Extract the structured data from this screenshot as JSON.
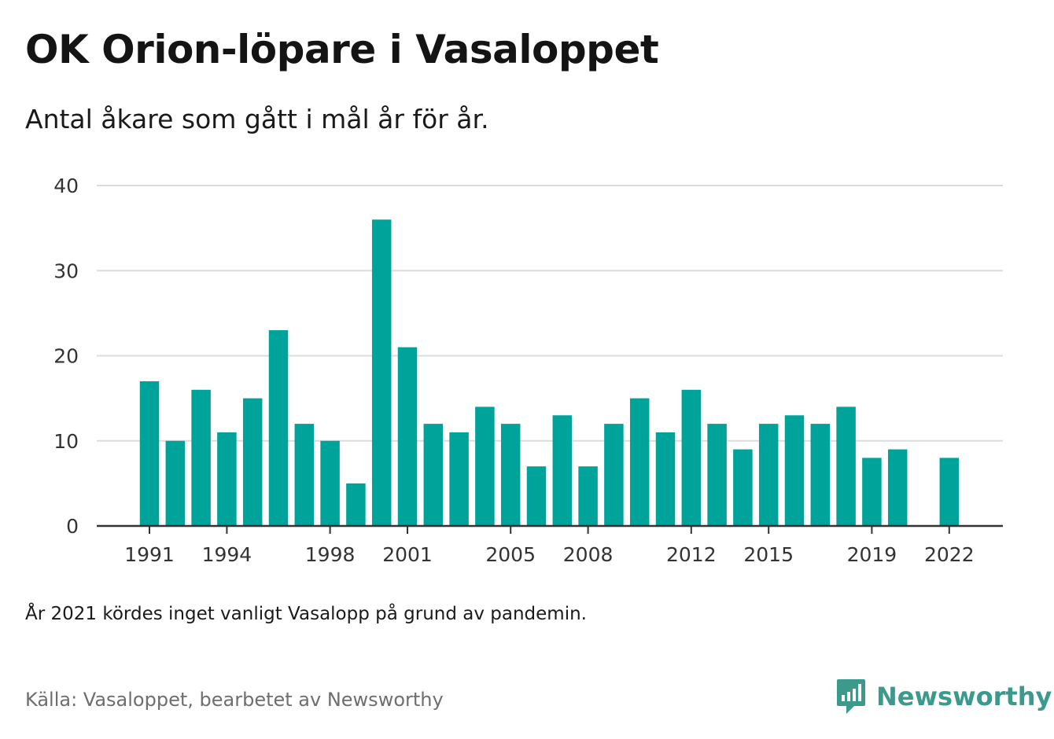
{
  "header": {
    "title": "OK Orion-löpare i Vasaloppet",
    "subtitle": "Antal åkare som gått i mål år för år."
  },
  "footnote": "År 2021 kördes inget vanligt Vasalopp på grund av pandemin.",
  "source": "Källa: Vasaloppet, bearbetet av Newsworthy",
  "brand": {
    "name": "Newsworthy",
    "icon": "newsworthy-logo-icon",
    "color": "#3c9a8c"
  },
  "chart_data": {
    "type": "bar",
    "categories": [
      "1991",
      "1992",
      "1993",
      "1994",
      "1995",
      "1996",
      "1997",
      "1998",
      "1999",
      "2000",
      "2001",
      "2002",
      "2003",
      "2004",
      "2005",
      "2006",
      "2007",
      "2008",
      "2009",
      "2010",
      "2011",
      "2012",
      "2013",
      "2014",
      "2015",
      "2016",
      "2017",
      "2018",
      "2019",
      "2020",
      "2021",
      "2022"
    ],
    "values": [
      17,
      10,
      16,
      11,
      15,
      23,
      12,
      10,
      5,
      36,
      21,
      12,
      11,
      14,
      12,
      7,
      13,
      7,
      12,
      15,
      11,
      16,
      12,
      9,
      12,
      13,
      12,
      14,
      8,
      9,
      null,
      8
    ],
    "x_tick_labels": [
      "1991",
      "1994",
      "1998",
      "2001",
      "2005",
      "2008",
      "2012",
      "2015",
      "2019",
      "2022"
    ],
    "y_ticks": [
      0,
      10,
      20,
      30,
      40
    ],
    "ylim": [
      0,
      40
    ],
    "grid": true,
    "bar_color": "#00a39a"
  }
}
